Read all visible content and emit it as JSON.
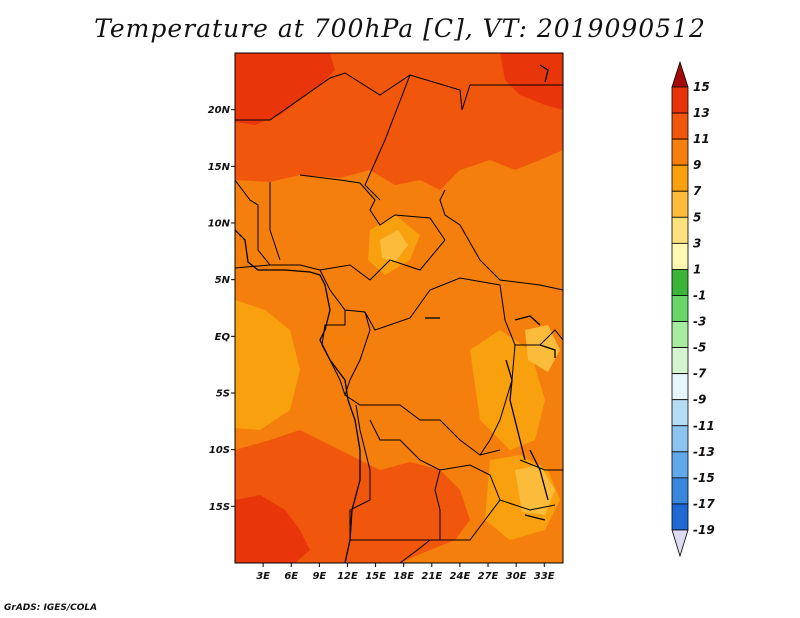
{
  "title": "Temperature at 700hPa [C], VT: 2019090512",
  "credit": "GrADS: IGES/COLA",
  "map": {
    "lon_labels": [
      "3E",
      "6E",
      "9E",
      "12E",
      "15E",
      "18E",
      "21E",
      "24E",
      "27E",
      "30E",
      "33E"
    ],
    "lon_values": [
      3,
      6,
      9,
      12,
      15,
      18,
      21,
      24,
      27,
      30,
      33
    ],
    "lat_labels": [
      "20N",
      "15N",
      "10N",
      "5N",
      "EQ",
      "5S",
      "10S",
      "15S"
    ],
    "lat_values": [
      20,
      15,
      10,
      5,
      0,
      -5,
      -10,
      -15
    ],
    "lon_range": [
      0,
      35
    ],
    "lat_range": [
      -20,
      25
    ]
  },
  "colorbar": {
    "labels": [
      "15",
      "13",
      "11",
      "9",
      "7",
      "5",
      "3",
      "1",
      "-1",
      "-3",
      "-5",
      "-7",
      "-9",
      "-11",
      "-13",
      "-15",
      "-17",
      "-19"
    ],
    "colors": [
      "#a50a0a",
      "#e8360a",
      "#f0560c",
      "#f57f0c",
      "#f9a00f",
      "#fbbc3c",
      "#fde07c",
      "#fdf7b0",
      "#3ab53a",
      "#6ad56a",
      "#a6ec9f",
      "#d4f5d0",
      "#e6f4fb",
      "#b4dcf5",
      "#8ac4ef",
      "#60a8e8",
      "#3a88de",
      "#2068d4",
      "#0e4ac4",
      "#0a2e98",
      "#dedcf2"
    ]
  },
  "colors": {
    "warm_13": "#e8360a",
    "warm_11": "#f0560c",
    "warm_9": "#f57f0c",
    "warm_7": "#f9a00f",
    "warm_5": "#fbbc3c",
    "warm_3": "#fde07c"
  }
}
